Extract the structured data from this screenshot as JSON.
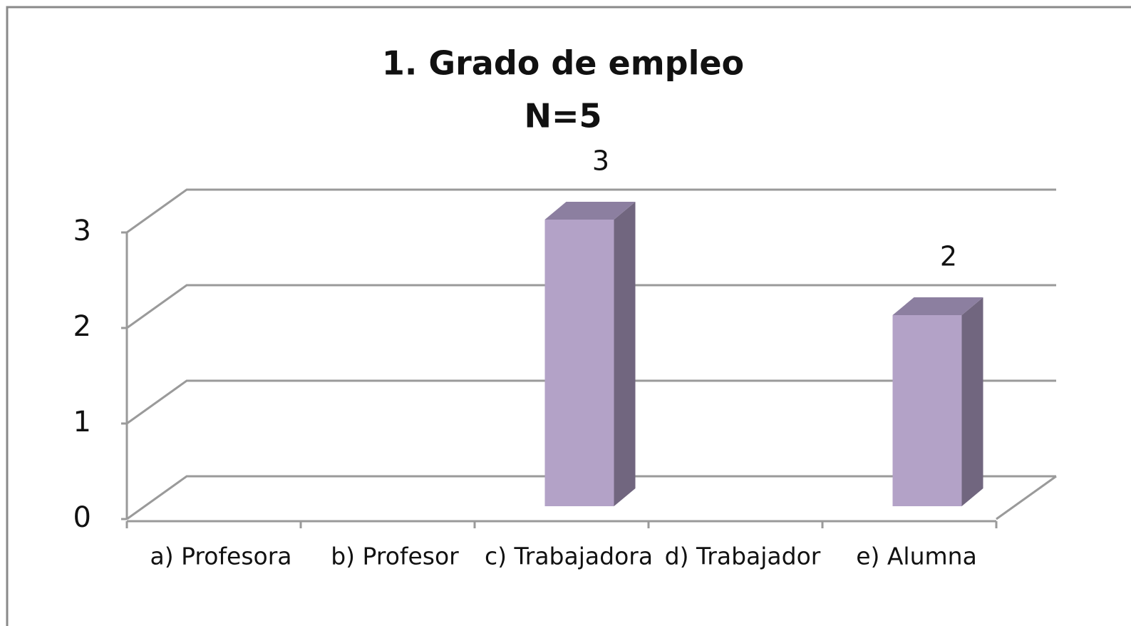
{
  "chart_data": {
    "type": "bar3d",
    "title": "1. Grado de empleo",
    "subtitle": "N=5",
    "categories": [
      "a)  Profesora",
      "b)  Profesor",
      "c)  Trabajadora",
      "d)  Trabajador",
      "e) Alumna"
    ],
    "values": [
      0,
      0,
      3,
      0,
      2
    ],
    "value_labels": [
      null,
      null,
      "3",
      null,
      "2"
    ],
    "color": "#b3a2c7",
    "ylim": [
      0,
      3
    ],
    "yticks": [
      0,
      1,
      2,
      3
    ],
    "grid": true
  }
}
